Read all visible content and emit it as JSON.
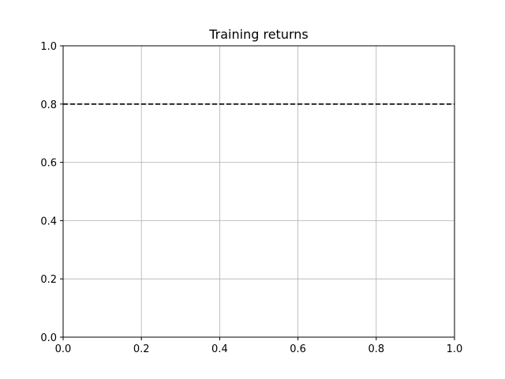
{
  "chart_data": {
    "type": "line",
    "title": "Training returns",
    "xlabel": "",
    "ylabel": "",
    "xlim": [
      0.0,
      1.0
    ],
    "ylim": [
      0.0,
      1.0
    ],
    "x_ticks": [
      "0.0",
      "0.2",
      "0.4",
      "0.6",
      "0.8",
      "1.0"
    ],
    "y_ticks": [
      "0.0",
      "0.2",
      "0.4",
      "0.6",
      "0.8",
      "1.0"
    ],
    "grid": true,
    "legend": "none",
    "series": [],
    "reference_lines": [
      {
        "orientation": "horizontal",
        "y": 0.8,
        "style": "dashed",
        "color": "#000000"
      }
    ]
  },
  "colors": {
    "grid": "#b0b0b0",
    "axes": "#000000",
    "background": "#ffffff"
  }
}
